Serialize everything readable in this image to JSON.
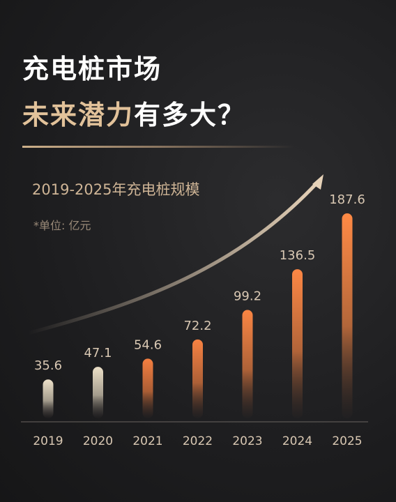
{
  "headline": {
    "line1": "充电桩市场",
    "line2_accent": "未来潜力",
    "line2_rest": "有多大？"
  },
  "chart_data": {
    "type": "bar",
    "title": "2019-2025年充电桩规模",
    "unit": "*单位: 亿元",
    "categories": [
      "2019",
      "2020",
      "2021",
      "2022",
      "2023",
      "2024",
      "2025"
    ],
    "values": [
      35.6,
      47.1,
      54.6,
      72.2,
      99.2,
      136.5,
      187.6
    ],
    "value_labels": [
      "35.6",
      "47.1",
      "54.6",
      "72.2",
      "99.2",
      "136.5",
      "187.6"
    ],
    "ylim": [
      0,
      187.6
    ],
    "grid": false,
    "trend_arrow": true,
    "colors": {
      "early_top": "#ece0c8",
      "late_top": "#ff8a45",
      "bar_bottom": "#2a2424",
      "axis": "#6a6460",
      "arrow": "#e6d2b8"
    }
  }
}
